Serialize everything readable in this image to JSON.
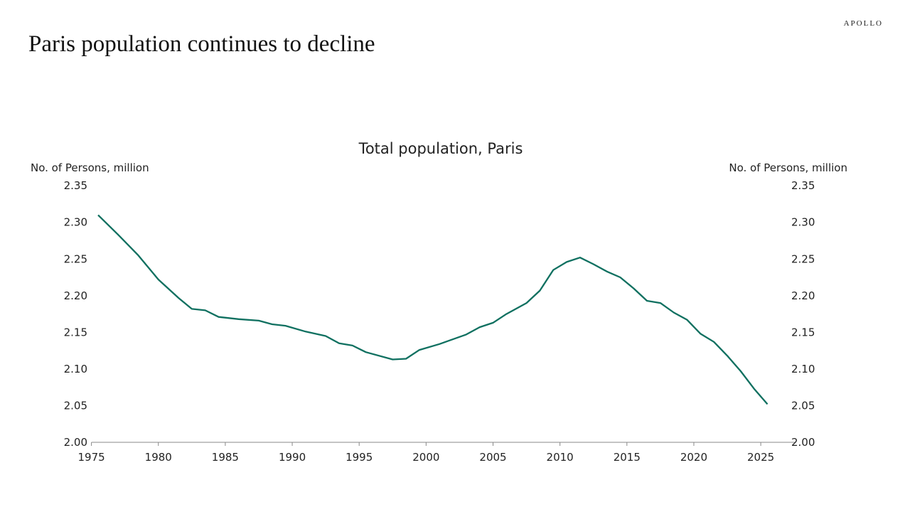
{
  "brand": "APOLLO",
  "page_title": "Paris population continues to decline",
  "chart_data": {
    "type": "line",
    "title": "Total population, Paris",
    "ylabel_left": "No. of Persons, million",
    "ylabel_right": "No. of Persons, million",
    "xlim": [
      1975,
      2027
    ],
    "ylim": [
      2.0,
      2.35
    ],
    "x_ticks": [
      "1975",
      "1980",
      "1985",
      "1990",
      "1995",
      "2000",
      "2005",
      "2010",
      "2015",
      "2020",
      "2025"
    ],
    "y_ticks": [
      "2.00",
      "2.05",
      "2.10",
      "2.15",
      "2.20",
      "2.25",
      "2.30",
      "2.35"
    ],
    "grid": false,
    "line_color": "#0f7060",
    "x": [
      1975.5,
      1977,
      1978.5,
      1980,
      1981.5,
      1982.5,
      1983.5,
      1984.5,
      1986,
      1987.5,
      1988.5,
      1989.5,
      1991,
      1992.5,
      1993.5,
      1994.5,
      1995.5,
      1997.5,
      1998.5,
      1999.5,
      2001,
      2003,
      2004,
      2005,
      2006,
      2007.5,
      2008.5,
      2009.5,
      2010.5,
      2011.5,
      2012.5,
      2013.5,
      2014.5,
      2015.5,
      2016.5,
      2017.5,
      2018.5,
      2019.5,
      2020.5,
      2021.5,
      2022.5,
      2023.5,
      2024.5,
      2025.5
    ],
    "y": [
      2.31,
      2.283,
      2.255,
      2.222,
      2.197,
      2.182,
      2.18,
      2.171,
      2.168,
      2.166,
      2.161,
      2.159,
      2.151,
      2.145,
      2.135,
      2.132,
      2.123,
      2.113,
      2.114,
      2.126,
      2.134,
      2.147,
      2.157,
      2.163,
      2.175,
      2.19,
      2.207,
      2.235,
      2.246,
      2.252,
      2.243,
      2.233,
      2.225,
      2.21,
      2.193,
      2.19,
      2.177,
      2.167,
      2.148,
      2.137,
      2.118,
      2.097,
      2.073,
      2.052
    ]
  }
}
